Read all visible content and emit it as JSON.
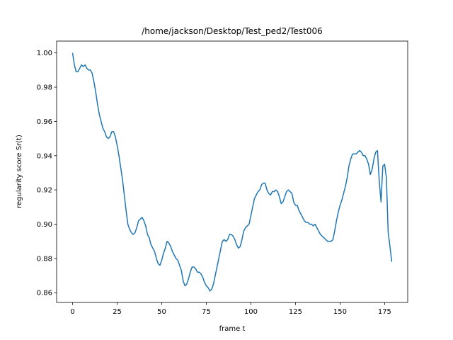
{
  "chart_data": {
    "type": "line",
    "title": "/home/jackson/Desktop/Test_ped2/Test006",
    "xlabel": "frame t",
    "ylabel": "regularity score Sr(t)",
    "color": "#1f77b4",
    "grid": false,
    "x": [
      0,
      1,
      2,
      3,
      4,
      5,
      6,
      7,
      8,
      9,
      10,
      11,
      12,
      13,
      14,
      15,
      16,
      17,
      18,
      19,
      20,
      21,
      22,
      23,
      24,
      25,
      26,
      27,
      28,
      29,
      30,
      31,
      32,
      33,
      34,
      35,
      36,
      37,
      38,
      39,
      40,
      41,
      42,
      43,
      44,
      45,
      46,
      47,
      48,
      49,
      50,
      51,
      52,
      53,
      54,
      55,
      56,
      57,
      58,
      59,
      60,
      61,
      62,
      63,
      64,
      65,
      66,
      67,
      68,
      69,
      70,
      71,
      72,
      73,
      74,
      75,
      76,
      77,
      78,
      79,
      80,
      81,
      82,
      83,
      84,
      85,
      86,
      87,
      88,
      89,
      90,
      91,
      92,
      93,
      94,
      95,
      96,
      97,
      98,
      99,
      100,
      101,
      102,
      103,
      104,
      105,
      106,
      107,
      108,
      109,
      110,
      111,
      112,
      113,
      114,
      115,
      116,
      117,
      118,
      119,
      120,
      121,
      122,
      123,
      124,
      125,
      126,
      127,
      128,
      129,
      130,
      131,
      132,
      133,
      134,
      135,
      136,
      137,
      138,
      139,
      140,
      141,
      142,
      143,
      144,
      145,
      146,
      147,
      148,
      149,
      150,
      151,
      152,
      153,
      154,
      155,
      156,
      157,
      158,
      159,
      160,
      161,
      162,
      163,
      164,
      165,
      166,
      167,
      168,
      169,
      170,
      171,
      172,
      173,
      174,
      175,
      176,
      177,
      178,
      179
    ],
    "values": [
      1.0,
      0.993,
      0.989,
      0.989,
      0.991,
      0.993,
      0.992,
      0.993,
      0.991,
      0.99,
      0.99,
      0.988,
      0.983,
      0.977,
      0.97,
      0.964,
      0.96,
      0.956,
      0.954,
      0.951,
      0.95,
      0.951,
      0.954,
      0.954,
      0.951,
      0.946,
      0.94,
      0.933,
      0.926,
      0.917,
      0.908,
      0.9,
      0.897,
      0.895,
      0.894,
      0.895,
      0.898,
      0.902,
      0.903,
      0.904,
      0.902,
      0.899,
      0.894,
      0.892,
      0.888,
      0.886,
      0.884,
      0.88,
      0.877,
      0.876,
      0.879,
      0.883,
      0.886,
      0.89,
      0.889,
      0.887,
      0.884,
      0.882,
      0.88,
      0.879,
      0.876,
      0.873,
      0.867,
      0.864,
      0.865,
      0.868,
      0.872,
      0.875,
      0.875,
      0.874,
      0.872,
      0.872,
      0.871,
      0.869,
      0.866,
      0.864,
      0.863,
      0.861,
      0.862,
      0.865,
      0.87,
      0.875,
      0.88,
      0.885,
      0.89,
      0.891,
      0.89,
      0.891,
      0.894,
      0.894,
      0.893,
      0.891,
      0.888,
      0.886,
      0.887,
      0.891,
      0.896,
      0.898,
      0.899,
      0.9,
      0.905,
      0.91,
      0.915,
      0.917,
      0.919,
      0.92,
      0.923,
      0.924,
      0.924,
      0.92,
      0.918,
      0.917,
      0.919,
      0.919,
      0.92,
      0.919,
      0.916,
      0.912,
      0.913,
      0.916,
      0.919,
      0.92,
      0.919,
      0.918,
      0.913,
      0.911,
      0.911,
      0.908,
      0.906,
      0.904,
      0.902,
      0.901,
      0.901,
      0.9,
      0.9,
      0.899,
      0.9,
      0.898,
      0.896,
      0.894,
      0.893,
      0.892,
      0.891,
      0.89,
      0.89,
      0.89,
      0.891,
      0.896,
      0.902,
      0.907,
      0.911,
      0.914,
      0.918,
      0.922,
      0.927,
      0.934,
      0.938,
      0.941,
      0.941,
      0.941,
      0.942,
      0.943,
      0.942,
      0.94,
      0.94,
      0.938,
      0.935,
      0.929,
      0.932,
      0.938,
      0.942,
      0.943,
      0.925,
      0.913,
      0.934,
      0.935,
      0.927,
      0.895,
      0.887,
      0.878
    ],
    "xlim": [
      -8.95,
      187.95
    ],
    "xticks": [
      0,
      25,
      50,
      75,
      100,
      125,
      150,
      175
    ],
    "ylim": [
      0.8543,
      1.0069
    ],
    "yticks": [
      0.86,
      0.88,
      {
        "value": 0.9,
        "label": "0.90"
      },
      0.92,
      0.94,
      0.96,
      0.98,
      {
        "value": 1,
        "label": "1.00"
      }
    ]
  }
}
